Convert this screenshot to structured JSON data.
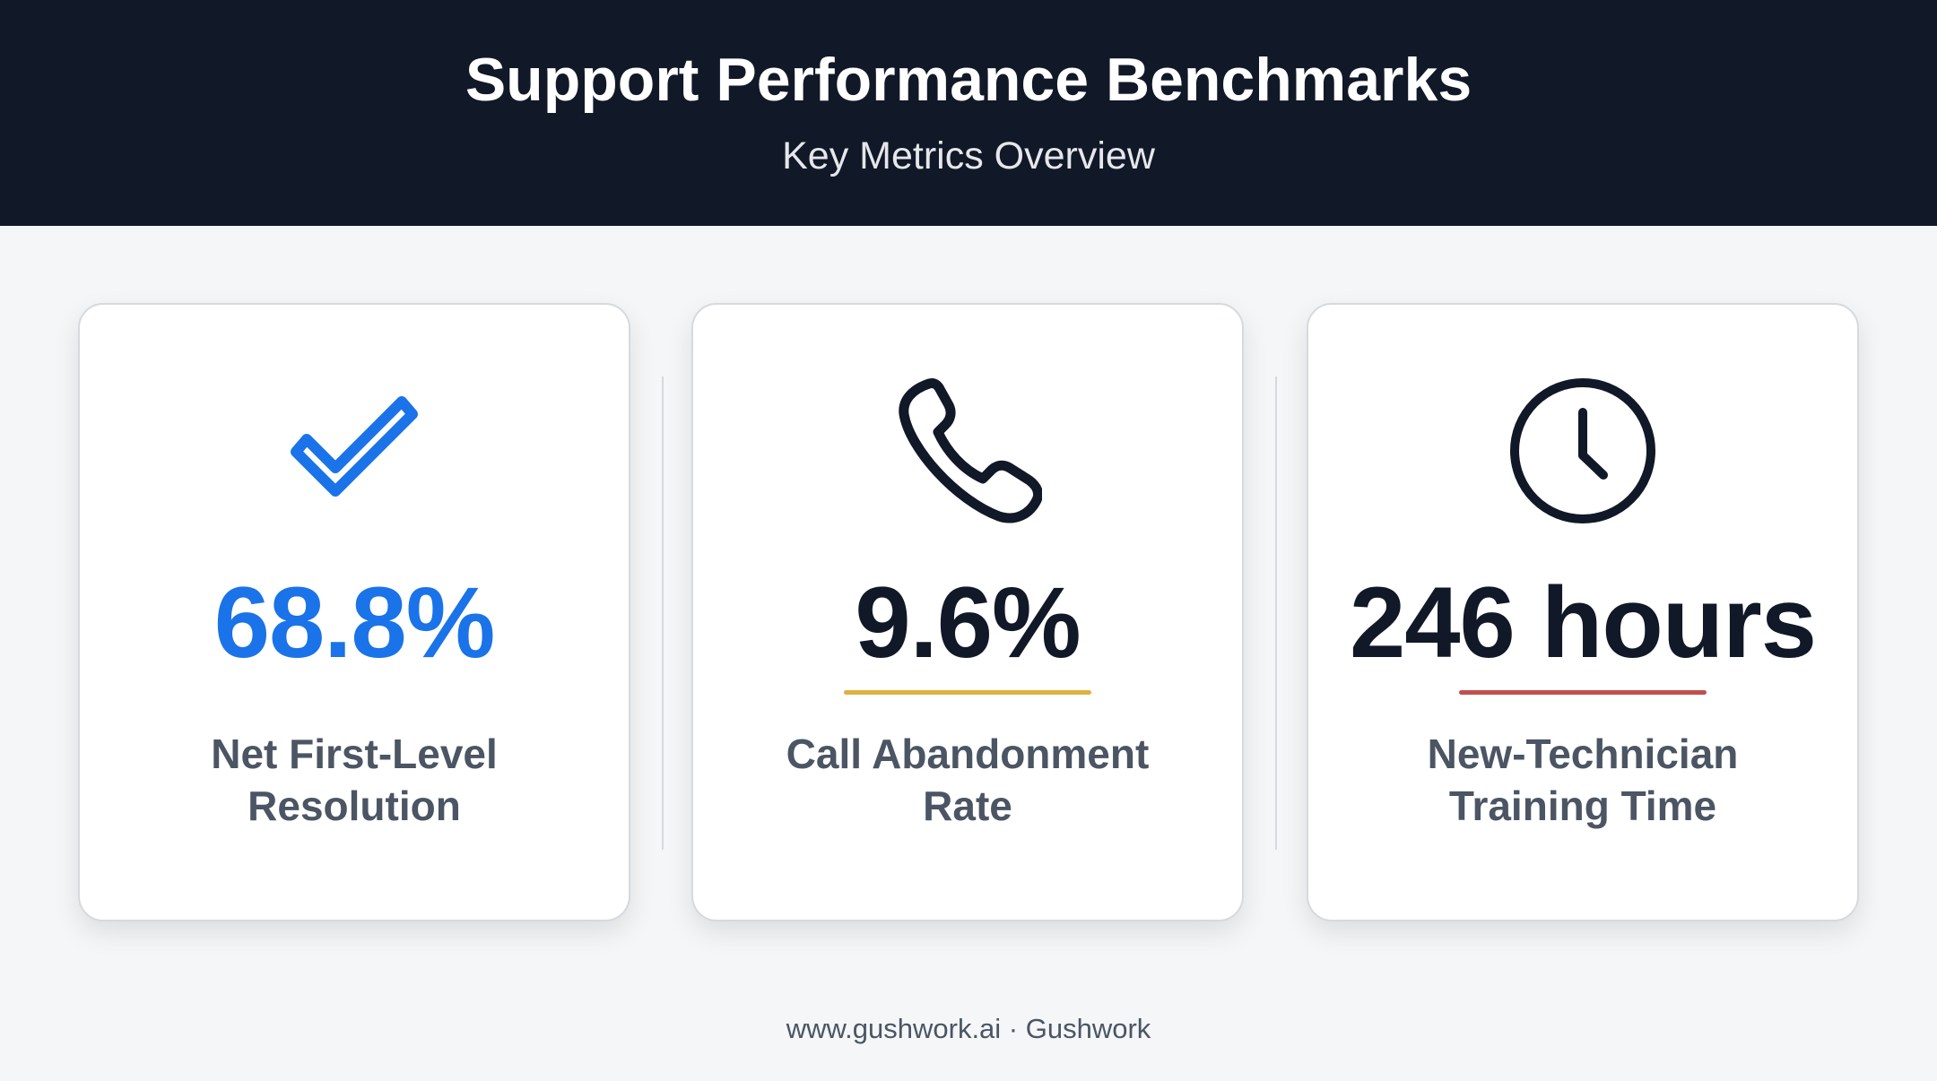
{
  "header": {
    "title": "Support Performance Benchmarks",
    "subtitle": "Key Metrics Overview"
  },
  "cards": [
    {
      "value": "68.8%",
      "label": "Net First-Level Resolution"
    },
    {
      "value": "9.6%",
      "label": "Call Abandonment Rate"
    },
    {
      "value": "246 hours",
      "label": "New-Technician Training Time"
    }
  ],
  "footer": "www.gushwork.ai · Gushwork"
}
